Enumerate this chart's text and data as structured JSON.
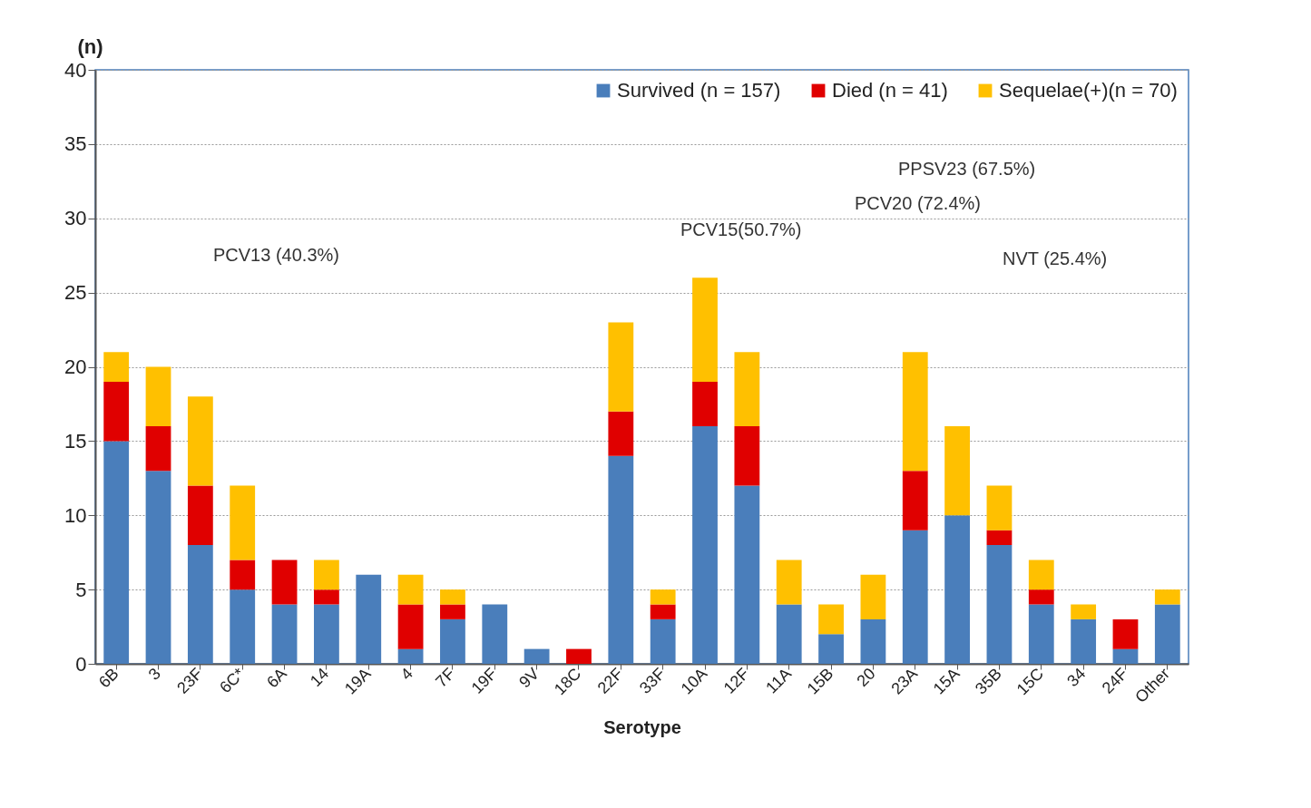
{
  "chart_data": {
    "type": "bar",
    "stacked": true,
    "xlabel": "Serotype",
    "ylabel": "(n)",
    "categories": [
      "6B",
      "3",
      "23F",
      "6C*",
      "6A",
      "14",
      "19A",
      "4",
      "7F",
      "19F",
      "9V",
      "18C",
      "22F",
      "33F",
      "10A",
      "12F",
      "11A",
      "15B",
      "20",
      "23A",
      "15A",
      "35B",
      "15C",
      "34",
      "24F",
      "Other"
    ],
    "series": [
      {
        "name": "Survived (n = 157)",
        "color": "#4a7ebb",
        "values": [
          15,
          13,
          8,
          5,
          4,
          4,
          6,
          1,
          3,
          4,
          1,
          0,
          14,
          3,
          16,
          12,
          4,
          2,
          3,
          9,
          10,
          8,
          4,
          3,
          1,
          4
        ]
      },
      {
        "name": "Died (n = 41)",
        "color": "#e00000",
        "values": [
          4,
          3,
          4,
          2,
          3,
          1,
          0,
          3,
          1,
          0,
          0,
          1,
          3,
          1,
          3,
          4,
          0,
          0,
          0,
          4,
          0,
          1,
          1,
          0,
          2,
          0
        ]
      },
      {
        "name": "Sequelae(+)(n = 70)",
        "color": "#ffc000",
        "values": [
          2,
          4,
          6,
          5,
          0,
          2,
          0,
          2,
          1,
          0,
          0,
          0,
          6,
          1,
          7,
          5,
          3,
          2,
          3,
          8,
          6,
          3,
          2,
          1,
          0,
          1
        ]
      }
    ],
    "ylim": [
      0,
      40
    ],
    "yticks": [
      0,
      5,
      10,
      15,
      20,
      25,
      30,
      35,
      40
    ],
    "grid": "y",
    "legend": "top right",
    "annotations": [
      "PPSV23 (67.5%)",
      "PCV20 (72.4%)",
      "PCV15(50.7%)",
      "PCV13 (40.3%)",
      "NVT (25.4%)"
    ]
  }
}
